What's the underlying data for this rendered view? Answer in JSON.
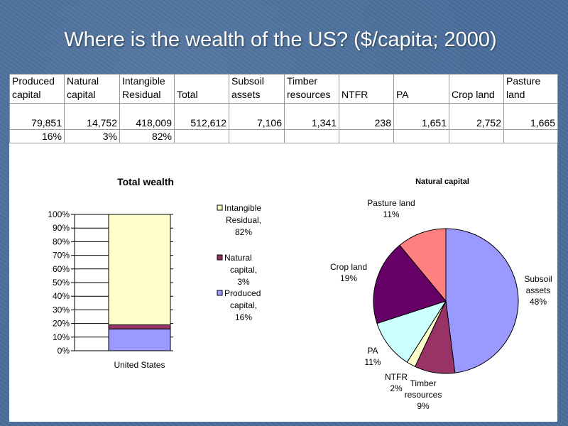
{
  "slide": {
    "title": "Where is the wealth of the US? ($/capita; 2000)"
  },
  "table": {
    "headers": [
      [
        "Produced",
        "capital"
      ],
      [
        "Natural",
        "capital"
      ],
      [
        "Intangible",
        "Residual"
      ],
      [
        "",
        "Total"
      ],
      [
        "Subsoil",
        "assets"
      ],
      [
        "Timber",
        "resources"
      ],
      [
        "",
        "NTFR"
      ],
      [
        "",
        "PA"
      ],
      [
        "",
        "Crop land"
      ],
      [
        "Pasture",
        "land"
      ]
    ],
    "values": [
      "79,851",
      "14,752",
      "418,009",
      "512,612",
      "7,106",
      "1,341",
      "238",
      "1,651",
      "2,752",
      "1,665"
    ],
    "percents": [
      "16%",
      "3%",
      "82%",
      "",
      "",
      "",
      "",
      "",
      "",
      ""
    ]
  },
  "chart_data": [
    {
      "type": "bar",
      "stacked": true,
      "title": "Total wealth",
      "categories": [
        "United States"
      ],
      "ylim": [
        0,
        100
      ],
      "yticks": [
        "0%",
        "10%",
        "20%",
        "30%",
        "40%",
        "50%",
        "60%",
        "70%",
        "80%",
        "90%",
        "100%"
      ],
      "series": [
        {
          "name": "Produced capital",
          "values": [
            16
          ],
          "color": "#9999ff",
          "legend_lines": [
            "Produced",
            "capital,",
            "16%"
          ]
        },
        {
          "name": "Natural capital",
          "values": [
            3
          ],
          "color": "#993366",
          "legend_lines": [
            "Natural",
            "capital,",
            "3%"
          ]
        },
        {
          "name": "Intangible Residual",
          "values": [
            82
          ],
          "color": "#ffffcc",
          "legend_lines": [
            "Intangible",
            "Residual,",
            "82%"
          ]
        }
      ],
      "legend_position": "right",
      "grid": true
    },
    {
      "type": "pie",
      "title": "Natural capital",
      "slices": [
        {
          "name": "Subsoil assets",
          "value": 48,
          "color": "#9999ff",
          "label_lines": [
            "Subsoil",
            "assets",
            "48%"
          ]
        },
        {
          "name": "Timber resources",
          "value": 9,
          "color": "#993366",
          "label_lines": [
            "Timber",
            "resources",
            "9%"
          ]
        },
        {
          "name": "NTFR",
          "value": 2,
          "color": "#ffffcc",
          "label_lines": [
            "NTFR",
            "2%"
          ]
        },
        {
          "name": "PA",
          "value": 11,
          "color": "#ccffff",
          "label_lines": [
            "PA",
            "11%"
          ]
        },
        {
          "name": "Crop land",
          "value": 19,
          "color": "#660066",
          "label_lines": [
            "Crop land",
            "19%"
          ]
        },
        {
          "name": "Pasture land",
          "value": 11,
          "color": "#ff8080",
          "label_lines": [
            "Pasture land",
            "11%"
          ]
        }
      ]
    }
  ]
}
